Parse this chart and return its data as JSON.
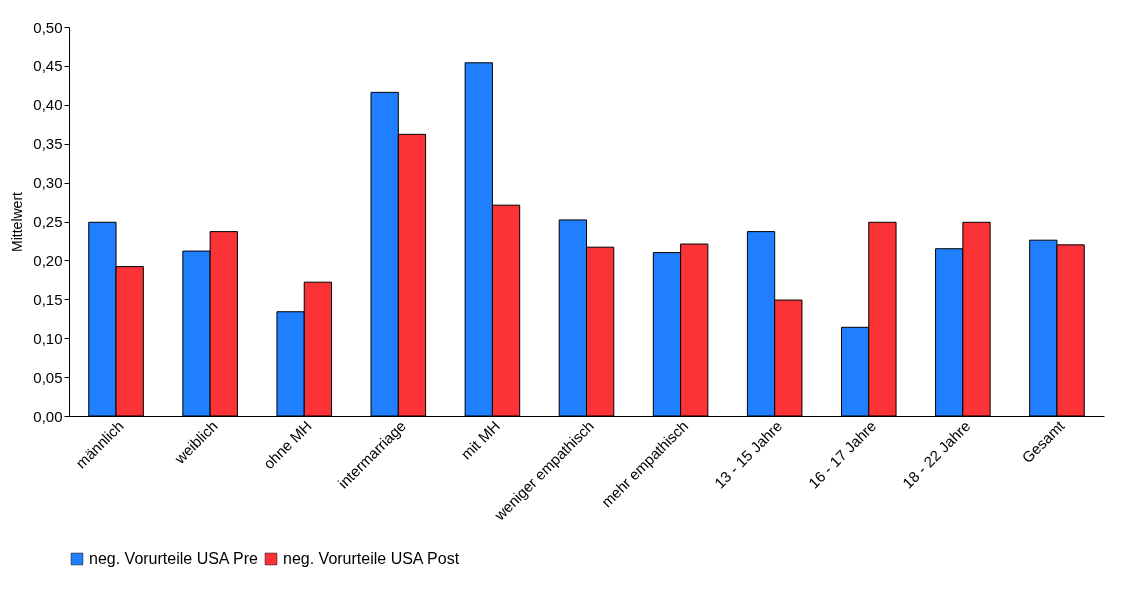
{
  "chart_data": {
    "type": "bar",
    "ylabel": "Mittelwert",
    "categories": [
      "männlich",
      "weiblich",
      "ohne MH",
      "intermarriage",
      "mit MH",
      "weniger empathisch",
      "mehr empathisch",
      "13 - 15 Jahre",
      "16 - 17 Jahre",
      "18 - 22 Jahre",
      "Gesamt"
    ],
    "series": [
      {
        "name": "neg. Vorurteile USA Pre",
        "color": "#1f7ffe",
        "values": [
          0.249,
          0.212,
          0.134,
          0.416,
          0.454,
          0.252,
          0.21,
          0.237,
          0.114,
          0.215,
          0.226
        ]
      },
      {
        "name": "neg. Vorurteile USA Post",
        "color": "#fb3236",
        "values": [
          0.192,
          0.237,
          0.172,
          0.362,
          0.271,
          0.217,
          0.221,
          0.149,
          0.249,
          0.249,
          0.22
        ]
      }
    ],
    "ylim": [
      0,
      0.5
    ],
    "yticks": [
      {
        "value": 0,
        "label": "0,00"
      },
      {
        "value": 0.05,
        "label": "0,05"
      },
      {
        "value": 0.1,
        "label": "0,10"
      },
      {
        "value": 0.15,
        "label": "0,15"
      },
      {
        "value": 0.2,
        "label": "0,20"
      },
      {
        "value": 0.25,
        "label": "0,25"
      },
      {
        "value": 0.3,
        "label": "0,30"
      },
      {
        "value": 0.35,
        "label": "0,35"
      },
      {
        "value": 0.4,
        "label": "0,40"
      },
      {
        "value": 0.45,
        "label": "0,45"
      },
      {
        "value": 0.5,
        "label": "0,50"
      }
    ],
    "grid": false,
    "legend": "bottom"
  }
}
